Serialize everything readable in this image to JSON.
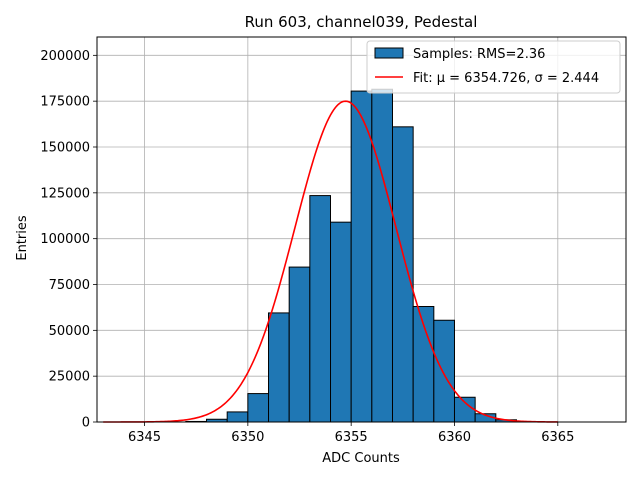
{
  "chart_data": {
    "type": "bar",
    "title": "Run 603, channel039, Pedestal",
    "xlabel": "ADC Counts",
    "ylabel": "Entries",
    "xlim": [
      6342.7,
      6368.3
    ],
    "ylim": [
      0,
      210000
    ],
    "xticks": [
      6345,
      6350,
      6355,
      6360,
      6365
    ],
    "yticks": [
      0,
      25000,
      50000,
      75000,
      100000,
      125000,
      150000,
      175000,
      200000
    ],
    "grid": true,
    "legend_position": "top-right",
    "bin_edges": [
      6343,
      6344,
      6345,
      6346,
      6347,
      6348,
      6349,
      6350,
      6351,
      6352,
      6353,
      6354,
      6355,
      6356,
      6357,
      6358,
      6359,
      6360,
      6361,
      6362,
      6363,
      6364,
      6365,
      6366,
      6367
    ],
    "histogram": {
      "name": "Samples: RMS=2.36",
      "color": "#1f77b4",
      "edgecolor": "#000000",
      "values": [
        0,
        0,
        0,
        0,
        300,
        1500,
        5500,
        15500,
        59500,
        84500,
        123500,
        109000,
        180500,
        181500,
        161000,
        63000,
        55500,
        13500,
        4500,
        1200,
        200,
        0,
        0,
        0
      ]
    },
    "fit": {
      "name": "Fit: μ = 6354.726, σ = 2.444",
      "color": "#ff0000",
      "mu": 6354.726,
      "sigma": 2.444,
      "amplitude": 175000,
      "x_range": [
        6343,
        6365
      ]
    }
  }
}
